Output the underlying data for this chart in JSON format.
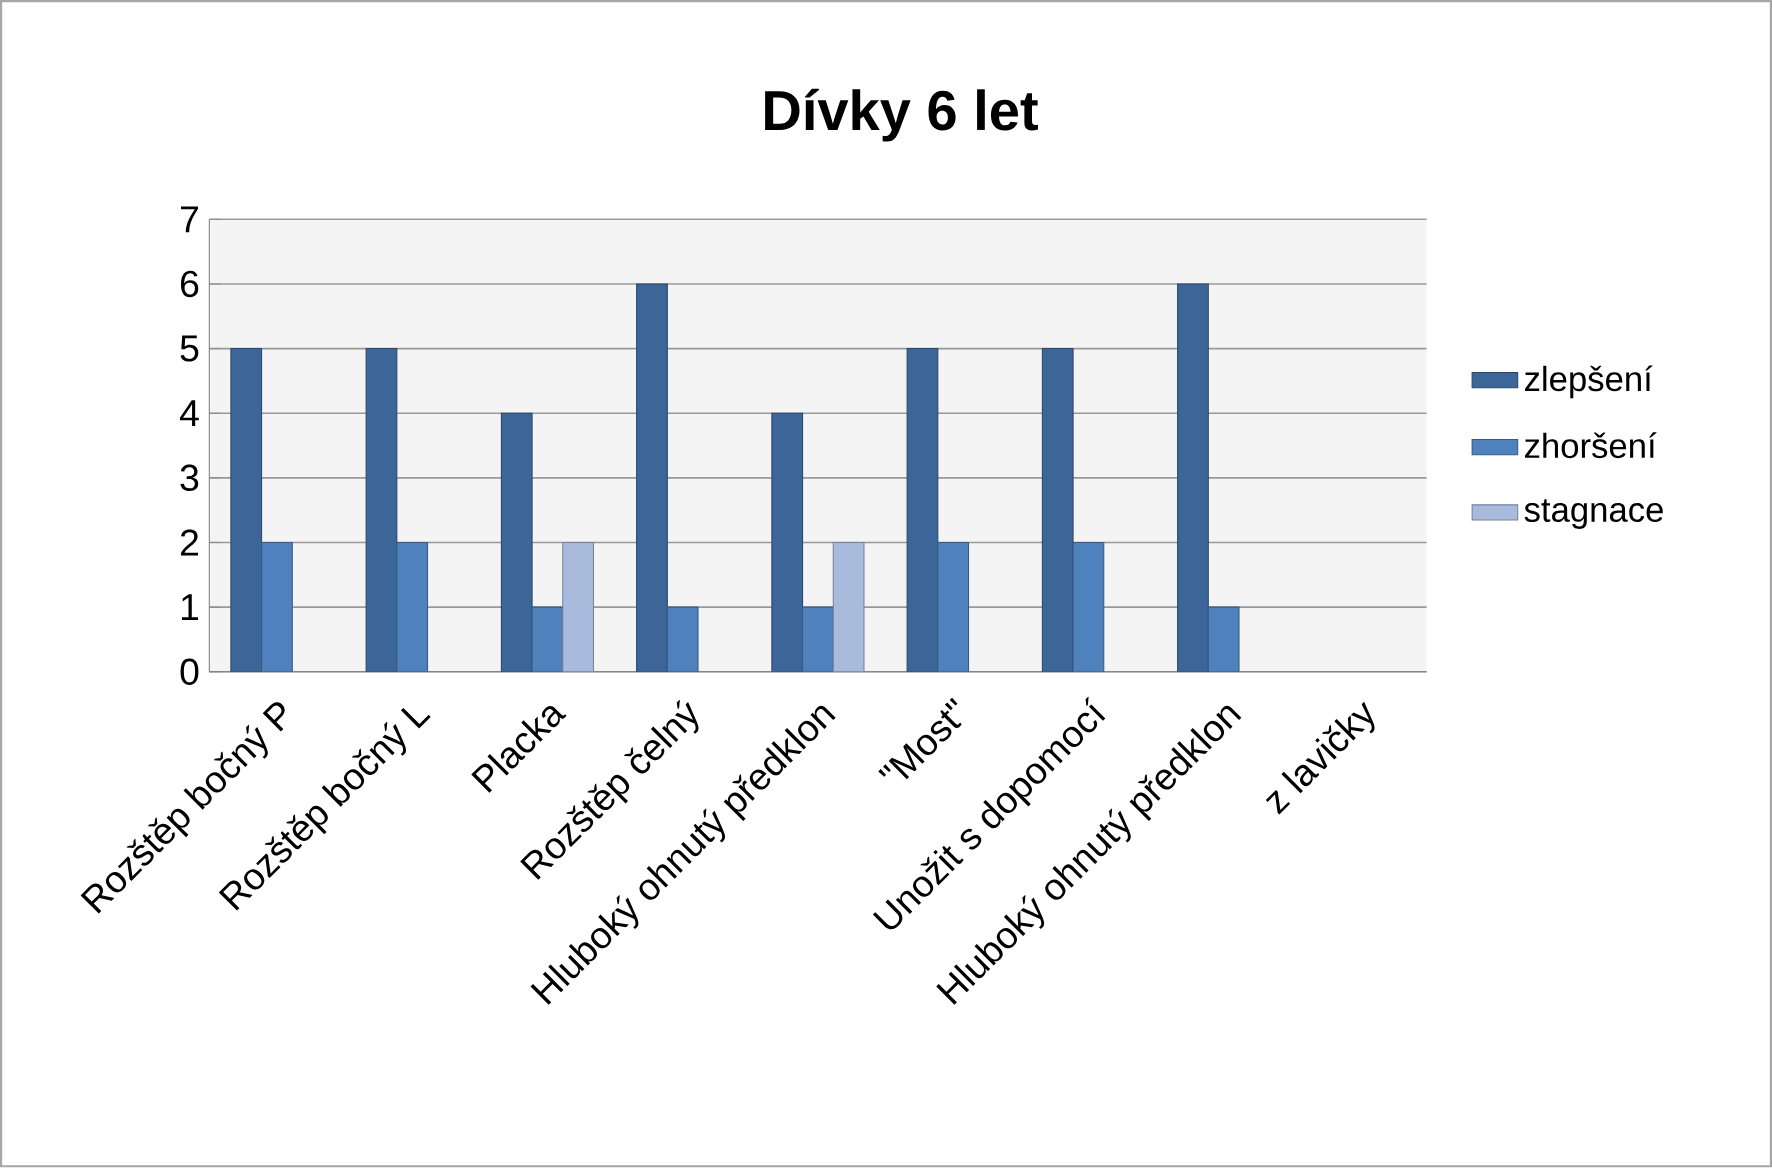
{
  "chart_data": {
    "type": "bar",
    "title": "Dívky 6 let",
    "categories": [
      "Rozštěp bočný P",
      "Rozštěp bočný L",
      "Placka",
      "Rozštěp čelný",
      "Hluboký ohnutý předklon",
      "\"Most\"",
      "Unožit s dopomocí",
      "Hluboký ohnutý předklon",
      "z lavičky"
    ],
    "series": [
      {
        "name": "zlepšení",
        "color": "#3c6698",
        "values": [
          5,
          5,
          4,
          6,
          4,
          5,
          5,
          6,
          null
        ]
      },
      {
        "name": "zhoršení",
        "color": "#4f81bd",
        "values": [
          2,
          2,
          1,
          1,
          1,
          2,
          2,
          1,
          null
        ]
      },
      {
        "name": "stagnace",
        "color": "#a9bbdd",
        "values": [
          null,
          null,
          2,
          null,
          2,
          null,
          null,
          null,
          null
        ]
      }
    ],
    "ylim": [
      0,
      7
    ],
    "yticks": [
      0,
      1,
      2,
      3,
      4,
      5,
      6,
      7
    ],
    "grid": "y",
    "legend": "right"
  }
}
